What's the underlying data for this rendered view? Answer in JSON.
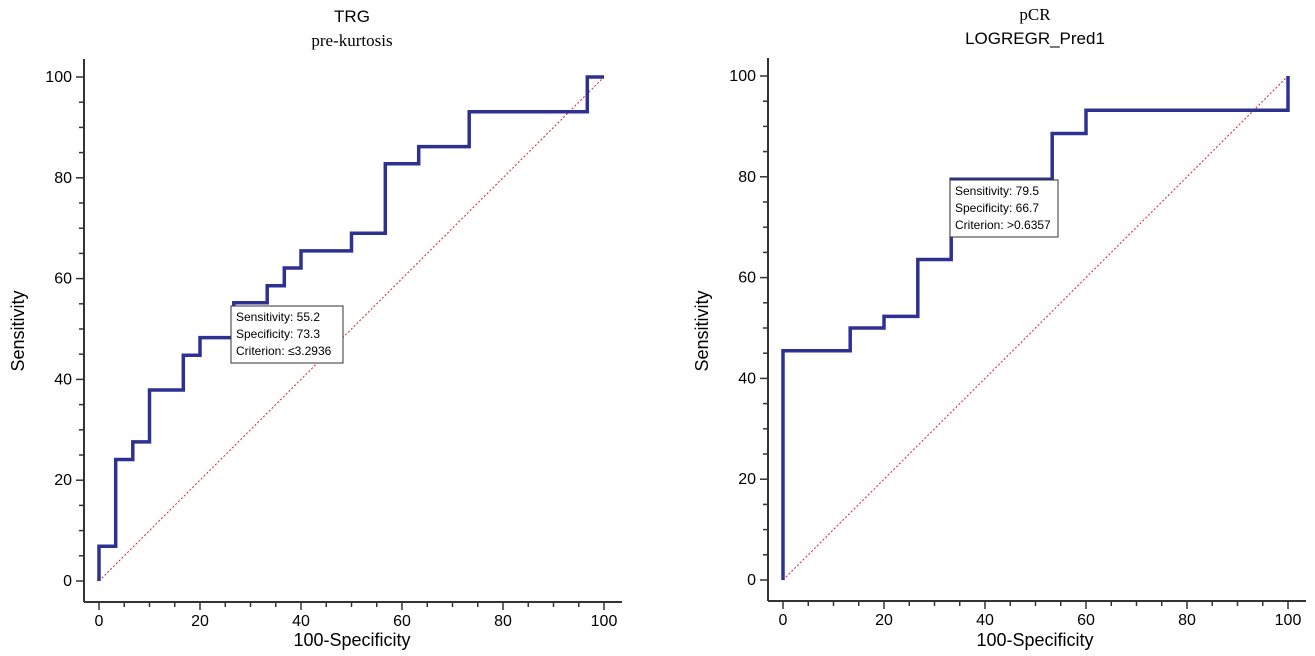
{
  "chart_data": [
    {
      "type": "line",
      "title": "TRG",
      "subtitle": "pre-kurtosis",
      "xlabel": "100-Specificity",
      "ylabel": "Sensitivity",
      "xlim": [
        0,
        100
      ],
      "ylim": [
        0,
        100
      ],
      "xticks": [
        "0",
        "20",
        "40",
        "60",
        "80",
        "100"
      ],
      "yticks": [
        "0",
        "20",
        "40",
        "60",
        "80",
        "100"
      ],
      "grid": false,
      "diagonal": true,
      "colors": {
        "roc": "#2e3192",
        "diagonal": "#d9232e"
      },
      "series": [
        {
          "x": [
            0,
            0,
            3.3,
            3.3,
            6.7,
            6.7,
            10,
            10,
            16.7,
            16.7,
            20,
            20,
            26.7,
            26.7,
            33.3,
            33.3,
            36.7,
            36.7,
            40,
            40,
            50,
            50,
            56.7,
            56.7,
            63.3,
            63.3,
            73.3,
            73.3,
            96.7,
            96.7,
            100
          ],
          "y": [
            0,
            6.9,
            6.9,
            24.1,
            24.1,
            27.6,
            27.6,
            37.9,
            37.9,
            44.8,
            44.8,
            48.3,
            48.3,
            55.2,
            55.2,
            58.6,
            58.6,
            62.1,
            62.1,
            65.5,
            65.5,
            69.0,
            69.0,
            82.8,
            82.8,
            86.2,
            86.2,
            93.1,
            93.1,
            100,
            100
          ]
        }
      ],
      "annotation": {
        "lines": [
          "Sensitivity: 55.2",
          "Specificity: 73.3",
          "Criterion: ≤3.2936"
        ]
      }
    },
    {
      "type": "line",
      "title": "pCR",
      "subtitle": "LOGREGR_Pred1",
      "xlabel": "100-Specificity",
      "ylabel": "Sensitivity",
      "xlim": [
        0,
        100
      ],
      "ylim": [
        0,
        100
      ],
      "xticks": [
        "0",
        "20",
        "40",
        "60",
        "80",
        "100"
      ],
      "yticks": [
        "0",
        "20",
        "40",
        "60",
        "80",
        "100"
      ],
      "grid": false,
      "diagonal": true,
      "colors": {
        "roc": "#2e3192",
        "diagonal": "#d9232e"
      },
      "series": [
        {
          "x": [
            0,
            0,
            13.3,
            13.3,
            20,
            20,
            26.7,
            26.7,
            33.3,
            33.3,
            53.3,
            53.3,
            60,
            60,
            100,
            100
          ],
          "y": [
            0,
            45.5,
            45.5,
            50,
            50,
            52.3,
            52.3,
            63.6,
            63.6,
            79.5,
            79.5,
            88.6,
            88.6,
            93.2,
            93.2,
            100
          ]
        }
      ],
      "annotation": {
        "lines": [
          "Sensitivity: 79.5",
          "Specificity: 66.7",
          "Criterion: >0.6357"
        ]
      }
    }
  ]
}
